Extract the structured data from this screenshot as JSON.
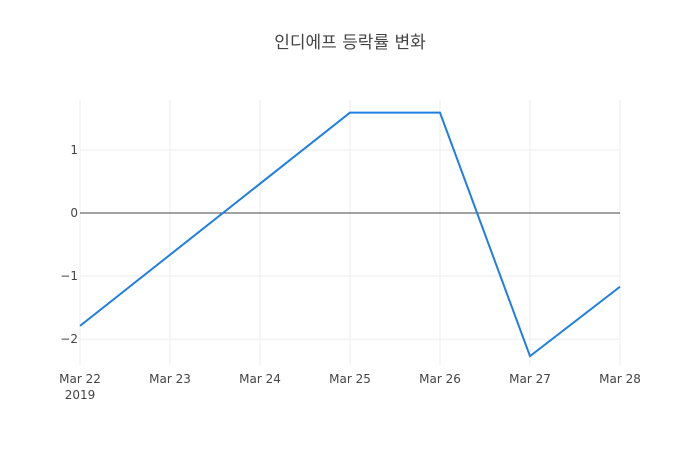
{
  "chart_data": {
    "type": "line",
    "title": "인디에프 등락률 변화",
    "x": [
      "2019-03-22",
      "2019-03-25",
      "2019-03-26",
      "2019-03-27",
      "2019-03-28"
    ],
    "series": [
      {
        "name": "등락률",
        "color": "#1f7fe0",
        "values": [
          -1.79,
          1.59,
          1.59,
          -2.27,
          -1.17
        ]
      }
    ],
    "xlim": [
      "2019-03-22",
      "2019-03-28"
    ],
    "xticks": [
      {
        "value": "2019-03-22",
        "label": "Mar 22\n2019"
      },
      {
        "value": "2019-03-23",
        "label": "Mar 23"
      },
      {
        "value": "2019-03-24",
        "label": "Mar 24"
      },
      {
        "value": "2019-03-25",
        "label": "Mar 25"
      },
      {
        "value": "2019-03-26",
        "label": "Mar 26"
      },
      {
        "value": "2019-03-27",
        "label": "Mar 27"
      },
      {
        "value": "2019-03-28",
        "label": "Mar 28"
      }
    ],
    "ylim": [
      -2.41,
      1.79
    ],
    "yticks": [
      {
        "value": -2,
        "label": "−2"
      },
      {
        "value": -1,
        "label": "−1"
      },
      0,
      1
    ],
    "grid": true,
    "show_legend": false
  }
}
